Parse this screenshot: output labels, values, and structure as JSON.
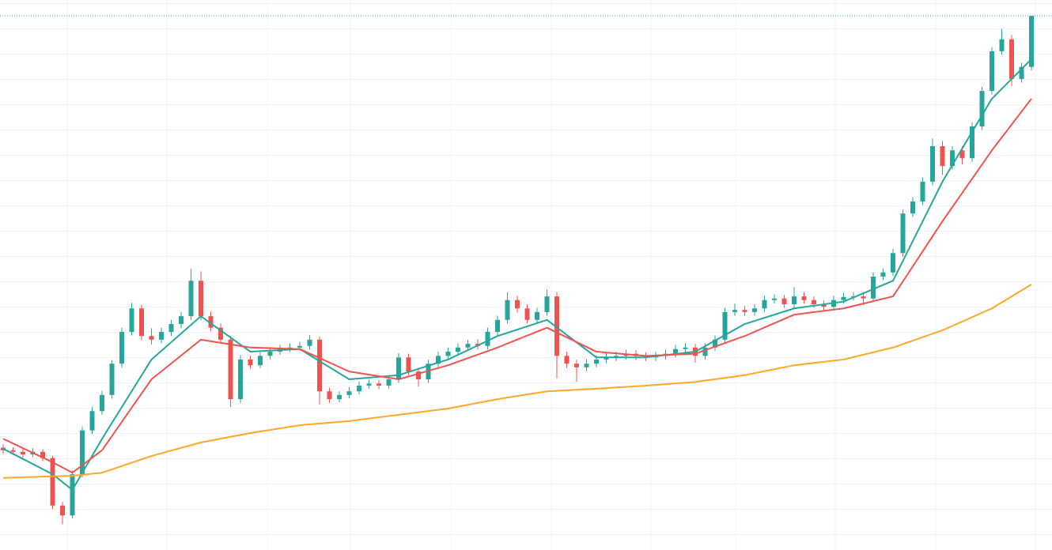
{
  "chart_data": {
    "type": "candlestick",
    "up_color": "#26a69a",
    "down_color": "#ef5350",
    "ylim": [
      0,
      100
    ],
    "candles": [
      [
        17.2,
        17.9,
        16.0,
        16.7
      ],
      [
        16.7,
        17.3,
        15.8,
        16.4
      ],
      [
        16.4,
        17.0,
        15.3,
        15.9
      ],
      [
        15.9,
        17.1,
        15.4,
        16.4
      ],
      [
        16.4,
        16.9,
        14.6,
        15.2
      ],
      [
        15.2,
        15.6,
        5.4,
        6.1
      ],
      [
        6.1,
        6.8,
        2.5,
        4.2
      ],
      [
        4.2,
        12.8,
        3.6,
        12.1
      ],
      [
        12.1,
        21.3,
        11.5,
        20.5
      ],
      [
        20.5,
        25.0,
        19.8,
        24.2
      ],
      [
        24.2,
        28.1,
        23.5,
        27.3
      ],
      [
        27.3,
        34.0,
        26.6,
        33.3
      ],
      [
        33.3,
        40.2,
        32.5,
        39.4
      ],
      [
        39.4,
        45.0,
        38.7,
        43.9
      ],
      [
        43.9,
        44.6,
        37.8,
        38.6
      ],
      [
        38.6,
        40.1,
        37.0,
        37.9
      ],
      [
        37.9,
        40.2,
        37.2,
        39.4
      ],
      [
        39.4,
        41.7,
        38.6,
        40.9
      ],
      [
        40.9,
        43.2,
        40.1,
        42.4
      ],
      [
        42.4,
        51.5,
        41.7,
        49.2
      ],
      [
        49.2,
        51.0,
        41.6,
        42.4
      ],
      [
        42.4,
        43.3,
        39.5,
        40.2
      ],
      [
        40.2,
        41.0,
        37.1,
        37.9
      ],
      [
        37.9,
        38.6,
        25.0,
        26.5
      ],
      [
        26.5,
        34.9,
        25.8,
        34.1
      ],
      [
        34.1,
        34.8,
        32.3,
        33.0
      ],
      [
        33.0,
        35.5,
        32.4,
        34.8
      ],
      [
        34.8,
        36.4,
        34.1,
        35.6
      ],
      [
        35.6,
        36.9,
        35.0,
        36.1
      ],
      [
        36.1,
        37.2,
        35.5,
        36.4
      ],
      [
        36.4,
        37.5,
        35.8,
        36.7
      ],
      [
        36.7,
        38.8,
        36.0,
        37.9
      ],
      [
        37.9,
        38.5,
        25.5,
        28.0
      ],
      [
        28.0,
        28.7,
        25.8,
        26.5
      ],
      [
        26.5,
        28.0,
        25.9,
        27.3
      ],
      [
        27.3,
        28.8,
        26.7,
        28.0
      ],
      [
        28.0,
        29.9,
        27.4,
        29.1
      ],
      [
        29.1,
        30.2,
        28.5,
        29.5
      ],
      [
        29.5,
        30.1,
        28.4,
        29.1
      ],
      [
        29.1,
        31.0,
        28.5,
        30.3
      ],
      [
        30.3,
        35.3,
        29.6,
        34.5
      ],
      [
        34.5,
        35.2,
        31.1,
        31.8
      ],
      [
        31.8,
        32.5,
        28.9,
        30.3
      ],
      [
        30.3,
        34.1,
        29.6,
        33.3
      ],
      [
        33.3,
        35.6,
        32.6,
        34.8
      ],
      [
        34.8,
        36.4,
        34.1,
        35.6
      ],
      [
        35.6,
        37.2,
        34.9,
        36.4
      ],
      [
        36.4,
        37.9,
        35.7,
        37.1
      ],
      [
        37.1,
        38.0,
        36.0,
        36.7
      ],
      [
        36.7,
        40.2,
        36.0,
        39.4
      ],
      [
        39.4,
        42.5,
        38.7,
        41.7
      ],
      [
        41.7,
        47.0,
        41.0,
        45.5
      ],
      [
        45.5,
        46.3,
        43.1,
        43.9
      ],
      [
        43.9,
        44.7,
        41.0,
        41.7
      ],
      [
        41.7,
        44.0,
        41.0,
        43.2
      ],
      [
        43.2,
        47.5,
        42.5,
        46.2
      ],
      [
        46.2,
        47.0,
        30.5,
        34.8
      ],
      [
        34.8,
        35.6,
        32.5,
        33.3
      ],
      [
        33.3,
        34.1,
        29.8,
        32.6
      ],
      [
        32.6,
        34.2,
        31.9,
        33.3
      ],
      [
        33.3,
        34.9,
        32.6,
        34.1
      ],
      [
        34.1,
        35.3,
        33.4,
        34.5
      ],
      [
        34.5,
        35.6,
        33.8,
        34.8
      ],
      [
        34.8,
        36.0,
        34.1,
        35.2
      ],
      [
        35.2,
        35.9,
        34.0,
        34.8
      ],
      [
        34.8,
        35.5,
        33.8,
        34.5
      ],
      [
        34.5,
        35.6,
        33.8,
        34.8
      ],
      [
        34.8,
        36.0,
        34.1,
        35.2
      ],
      [
        35.2,
        36.9,
        34.5,
        36.1
      ],
      [
        36.1,
        37.2,
        35.4,
        36.4
      ],
      [
        36.4,
        37.1,
        33.5,
        34.8
      ],
      [
        34.8,
        37.2,
        34.1,
        36.4
      ],
      [
        36.4,
        38.7,
        35.7,
        37.9
      ],
      [
        37.9,
        44.0,
        37.2,
        43.2
      ],
      [
        43.2,
        44.8,
        42.5,
        43.6
      ],
      [
        43.6,
        44.4,
        42.5,
        43.2
      ],
      [
        43.2,
        44.7,
        42.5,
        43.9
      ],
      [
        43.9,
        46.3,
        43.2,
        45.5
      ],
      [
        45.5,
        46.6,
        44.8,
        45.8
      ],
      [
        45.8,
        46.5,
        44.0,
        44.7
      ],
      [
        44.7,
        48.0,
        44.0,
        46.2
      ],
      [
        46.2,
        47.0,
        44.8,
        45.5
      ],
      [
        45.5,
        46.2,
        44.0,
        44.7
      ],
      [
        44.7,
        45.4,
        43.4,
        44.2
      ],
      [
        44.2,
        46.3,
        43.5,
        45.5
      ],
      [
        45.5,
        46.9,
        44.8,
        46.1
      ],
      [
        46.1,
        47.0,
        45.4,
        46.2
      ],
      [
        46.2,
        47.0,
        44.5,
        45.8
      ],
      [
        45.8,
        50.8,
        45.1,
        50.0
      ],
      [
        50.0,
        51.6,
        49.3,
        50.8
      ],
      [
        50.8,
        55.3,
        50.1,
        54.5
      ],
      [
        54.5,
        62.9,
        53.8,
        62.1
      ],
      [
        62.1,
        65.2,
        61.4,
        64.4
      ],
      [
        64.4,
        69.0,
        63.7,
        68.2
      ],
      [
        68.2,
        76.5,
        67.5,
        75.0
      ],
      [
        75.0,
        76.0,
        69.5,
        71.2
      ],
      [
        71.2,
        75.0,
        70.5,
        74.2
      ],
      [
        74.2,
        75.0,
        71.5,
        72.7
      ],
      [
        72.7,
        79.6,
        72.0,
        78.8
      ],
      [
        78.8,
        86.4,
        78.1,
        85.6
      ],
      [
        85.6,
        94.0,
        84.9,
        93.2
      ],
      [
        93.2,
        97.5,
        92.5,
        95.5
      ],
      [
        95.5,
        96.3,
        86.5,
        87.9
      ],
      [
        87.9,
        91.0,
        87.2,
        90.2
      ],
      [
        90.2,
        100,
        89.5,
        100
      ]
    ],
    "ma_x": [
      0,
      5,
      7,
      10,
      15,
      20,
      25,
      30,
      35,
      40,
      45,
      50,
      55,
      60,
      65,
      70,
      75,
      80,
      85,
      90,
      95,
      100,
      104
    ],
    "series": [
      {
        "color": "#26a69a",
        "values": [
          17.0,
          12.1,
          9.1,
          18.9,
          34.1,
          42.4,
          35.6,
          36.1,
          30.3,
          31.1,
          34.1,
          38.6,
          41.7,
          34.5,
          34.5,
          35.6,
          40.9,
          43.9,
          45.2,
          49.2,
          68.2,
          84.1,
          91.7
        ]
      },
      {
        "color": "#ef5350",
        "values": [
          18.9,
          14.4,
          12.4,
          16.7,
          30.3,
          37.9,
          36.4,
          36.1,
          31.8,
          30.3,
          33.0,
          36.4,
          40.2,
          35.6,
          34.8,
          35.2,
          38.6,
          42.7,
          43.9,
          46.2,
          60.6,
          74.2,
          84.1
        ]
      },
      {
        "color": "#ffa726",
        "values": [
          11.4,
          11.7,
          11.8,
          12.4,
          15.6,
          18.2,
          20.0,
          21.5,
          22.3,
          23.5,
          24.7,
          26.5,
          28.0,
          28.5,
          29.1,
          29.8,
          31.1,
          33.0,
          34.1,
          36.4,
          39.7,
          43.9,
          48.5
        ]
      }
    ]
  }
}
